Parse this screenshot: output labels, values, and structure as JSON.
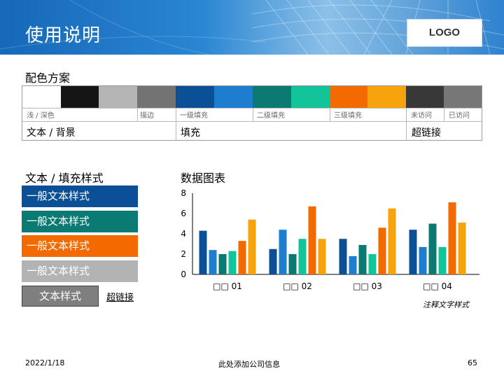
{
  "header": {
    "title": "使用说明",
    "logo": "LOGO"
  },
  "palette": {
    "title": "配色方案",
    "swatches": [
      "#ffffff",
      "#151515",
      "#b5b5b5",
      "#737373",
      "#0b4f96",
      "#1d7dcf",
      "#0a7a72",
      "#12c49a",
      "#f26a00",
      "#f7a30c",
      "#383838",
      "#777777"
    ],
    "captions": [
      "浅 / 深色",
      "描边",
      "一级填充",
      "二级填充",
      "三级填充",
      "未访问",
      "已访问"
    ],
    "labels": [
      "文本 / 背景",
      "填充",
      "超链接"
    ]
  },
  "styles": {
    "title": "文本 / 填充样式",
    "boxes": [
      "一般文本样式",
      "一般文本样式",
      "一般文本样式",
      "一般文本样式"
    ],
    "small_box": "文本样式",
    "hyperlink": "超链接"
  },
  "chart_section": {
    "title": "数据图表",
    "note": "注释文字样式"
  },
  "chart_data": {
    "type": "bar",
    "categories": [
      "□□ 01",
      "□□ 02",
      "□□ 03",
      "□□ 04"
    ],
    "series": [
      {
        "values": [
          4.3,
          2.5,
          3.5,
          4.4
        ],
        "color": "#0b4f96"
      },
      {
        "values": [
          2.4,
          4.4,
          1.8,
          2.7
        ],
        "color": "#1d7dcf"
      },
      {
        "values": [
          2.0,
          2.0,
          2.9,
          5.0
        ],
        "color": "#0a7a72"
      },
      {
        "values": [
          2.3,
          3.5,
          2.0,
          2.7
        ],
        "color": "#12c49a"
      },
      {
        "values": [
          3.3,
          6.7,
          4.6,
          7.1
        ],
        "color": "#f26a00"
      },
      {
        "values": [
          5.4,
          3.5,
          6.5,
          5.1
        ],
        "color": "#f7a30c"
      }
    ],
    "yticks": [
      0,
      2,
      4,
      6,
      8
    ],
    "ylim": [
      0,
      8
    ],
    "grid": false
  },
  "footer": {
    "date": "2022/1/18",
    "company": "此处添加公司信息",
    "page": "65"
  }
}
